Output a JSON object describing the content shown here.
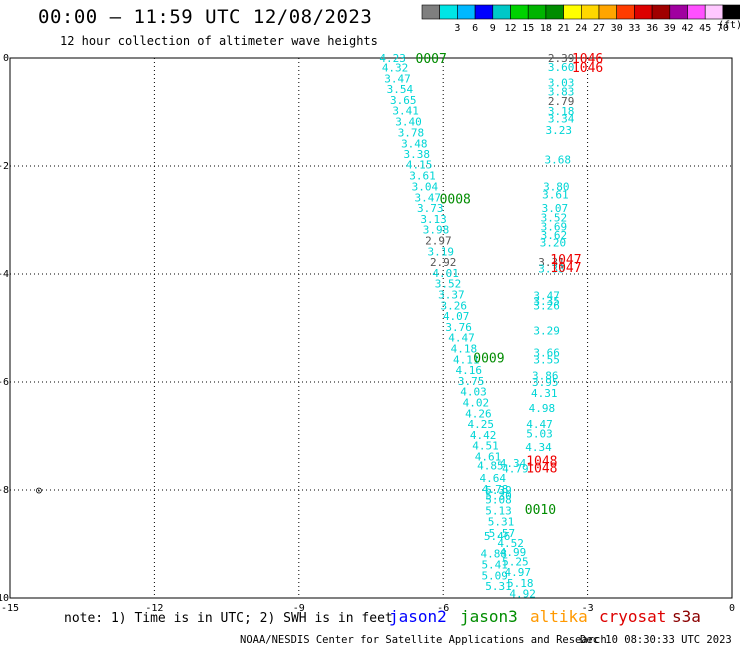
{
  "title": "00:00 – 11:59 UTC 12/08/2023",
  "subtitle": "12 hour collection of altimeter wave heights",
  "note": "note: 1) Time is in UTC; 2) SWH is in feet",
  "footer_left": "NOAA/NESDIS Center for Satellite Applications and Research",
  "footer_right": "Dec 10 08:30:33 UTC 2023",
  "color_scale": {
    "unit": "(ft)",
    "bins": [
      {
        "label": "",
        "color": "#7f7f7f"
      },
      {
        "label": "3",
        "color": "#00e5e5"
      },
      {
        "label": "6",
        "color": "#00b8ff"
      },
      {
        "label": "9",
        "color": "#0000ff"
      },
      {
        "label": "12",
        "color": "#00c8c8"
      },
      {
        "label": "15",
        "color": "#00d200"
      },
      {
        "label": "18",
        "color": "#00b400"
      },
      {
        "label": "21",
        "color": "#008c00"
      },
      {
        "label": "24",
        "color": "#ffff00"
      },
      {
        "label": "27",
        "color": "#ffd700"
      },
      {
        "label": "30",
        "color": "#ffa500"
      },
      {
        "label": "33",
        "color": "#ff3c00"
      },
      {
        "label": "36",
        "color": "#dc0000"
      },
      {
        "label": "39",
        "color": "#a00000"
      },
      {
        "label": "42",
        "color": "#a000a0"
      },
      {
        "label": "45",
        "color": "#ff50ff"
      },
      {
        "label": "70",
        "color": "#ffc8ff"
      },
      {
        "label": "",
        "color": "#000000"
      }
    ]
  },
  "legend": [
    {
      "name": "jason2",
      "color": "#0000ff"
    },
    {
      "name": "jason3",
      "color": "#008c00"
    },
    {
      "name": "altika",
      "color": "#ff9900"
    },
    {
      "name": "cryosat",
      "color": "#dd0000"
    },
    {
      "name": "s3a",
      "color": "#8b0000"
    }
  ],
  "chart_data": {
    "type": "scatter",
    "xlim": [
      -15,
      0
    ],
    "ylim": [
      -10,
      0
    ],
    "x_ticks": [
      "-15",
      "-12",
      "-9",
      "-6",
      "-3",
      "0"
    ],
    "y_ticks": [
      "0",
      "-2",
      "-4",
      "-6",
      "-8",
      "-10"
    ],
    "grid": true,
    "colors": {
      "cyan": "#00d5d5",
      "gray": "#555555",
      "green": "#008c00",
      "red": "#ee0000",
      "black": "#000000"
    },
    "markers": [
      {
        "text": "⊙",
        "x": -14.4,
        "y": -8.0,
        "c": "black"
      }
    ],
    "labels": [
      {
        "text": "0007",
        "x": -6.25,
        "y": 0.0,
        "c": "green"
      },
      {
        "text": "0008",
        "x": -5.75,
        "y": -2.6,
        "c": "green"
      },
      {
        "text": "0009",
        "x": -5.05,
        "y": -5.55,
        "c": "green"
      },
      {
        "text": "0010",
        "x": -3.98,
        "y": -8.35,
        "c": "green"
      },
      {
        "text": "1046",
        "x": -3.0,
        "y": 0.0,
        "c": "red"
      },
      {
        "text": "1046",
        "x": -3.0,
        "y": -0.17,
        "c": "red"
      },
      {
        "text": "1047",
        "x": -3.45,
        "y": -3.72,
        "c": "red"
      },
      {
        "text": "1047",
        "x": -3.45,
        "y": -3.87,
        "c": "red"
      },
      {
        "text": "1048",
        "x": -3.95,
        "y": -7.45,
        "c": "red"
      },
      {
        "text": "1048",
        "x": -3.95,
        "y": -7.58,
        "c": "red"
      }
    ],
    "points": [
      {
        "v": "4.23",
        "x": -7.05,
        "y": 0.0,
        "c": "cyan"
      },
      {
        "v": "4.32",
        "x": -7.0,
        "y": -0.18,
        "c": "cyan"
      },
      {
        "v": "3.47",
        "x": -6.95,
        "y": -0.38,
        "c": "cyan"
      },
      {
        "v": "3.54",
        "x": -6.9,
        "y": -0.57,
        "c": "cyan"
      },
      {
        "v": "3.65",
        "x": -6.83,
        "y": -0.78,
        "c": "cyan"
      },
      {
        "v": "3.41",
        "x": -6.78,
        "y": -0.97,
        "c": "cyan"
      },
      {
        "v": "3.40",
        "x": -6.72,
        "y": -1.18,
        "c": "cyan"
      },
      {
        "v": "3.78",
        "x": -6.67,
        "y": -1.38,
        "c": "cyan"
      },
      {
        "v": "3.48",
        "x": -6.6,
        "y": -1.58,
        "c": "cyan"
      },
      {
        "v": "3.38",
        "x": -6.55,
        "y": -1.78,
        "c": "cyan"
      },
      {
        "v": "4.15",
        "x": -6.5,
        "y": -1.97,
        "c": "cyan"
      },
      {
        "v": "3.61",
        "x": -6.43,
        "y": -2.18,
        "c": "cyan"
      },
      {
        "v": "3.04",
        "x": -6.38,
        "y": -2.38,
        "c": "cyan"
      },
      {
        "v": "3.47",
        "x": -6.32,
        "y": -2.58,
        "c": "cyan"
      },
      {
        "v": "3.73",
        "x": -6.27,
        "y": -2.78,
        "c": "cyan"
      },
      {
        "v": "3.13",
        "x": -6.2,
        "y": -2.98,
        "c": "cyan"
      },
      {
        "v": "3.98",
        "x": -6.15,
        "y": -3.18,
        "c": "cyan"
      },
      {
        "v": "2.97",
        "x": -6.1,
        "y": -3.38,
        "c": "gray"
      },
      {
        "v": "3.19",
        "x": -6.05,
        "y": -3.58,
        "c": "cyan"
      },
      {
        "v": "2.92",
        "x": -6.0,
        "y": -3.78,
        "c": "gray"
      },
      {
        "v": "4.01",
        "x": -5.95,
        "y": -3.98,
        "c": "cyan"
      },
      {
        "v": "3.52",
        "x": -5.9,
        "y": -4.18,
        "c": "cyan"
      },
      {
        "v": "3.37",
        "x": -5.83,
        "y": -4.38,
        "c": "cyan"
      },
      {
        "v": "3.26",
        "x": -5.78,
        "y": -4.58,
        "c": "cyan"
      },
      {
        "v": "4.07",
        "x": -5.73,
        "y": -4.78,
        "c": "cyan"
      },
      {
        "v": "3.76",
        "x": -5.68,
        "y": -4.98,
        "c": "cyan"
      },
      {
        "v": "4.47",
        "x": -5.62,
        "y": -5.18,
        "c": "cyan"
      },
      {
        "v": "4.18",
        "x": -5.57,
        "y": -5.38,
        "c": "cyan"
      },
      {
        "v": "4.11",
        "x": -5.52,
        "y": -5.58,
        "c": "cyan"
      },
      {
        "v": "4.16",
        "x": -5.47,
        "y": -5.78,
        "c": "cyan"
      },
      {
        "v": "3.75",
        "x": -5.42,
        "y": -5.98,
        "c": "cyan"
      },
      {
        "v": "4.03",
        "x": -5.37,
        "y": -6.18,
        "c": "cyan"
      },
      {
        "v": "4.02",
        "x": -5.32,
        "y": -6.38,
        "c": "cyan"
      },
      {
        "v": "4.26",
        "x": -5.27,
        "y": -6.58,
        "c": "cyan"
      },
      {
        "v": "4.25",
        "x": -5.22,
        "y": -6.78,
        "c": "cyan"
      },
      {
        "v": "4.42",
        "x": -5.17,
        "y": -6.98,
        "c": "cyan"
      },
      {
        "v": "4.51",
        "x": -5.12,
        "y": -7.18,
        "c": "cyan"
      },
      {
        "v": "4.61",
        "x": -5.07,
        "y": -7.38,
        "c": "cyan"
      },
      {
        "v": "4.85",
        "x": -5.02,
        "y": -7.55,
        "c": "cyan"
      },
      {
        "v": "4.64",
        "x": -4.97,
        "y": -7.78,
        "c": "cyan"
      },
      {
        "v": "4.78",
        "x": -4.92,
        "y": -7.98,
        "c": "cyan"
      },
      {
        "v": "5.39",
        "x": -4.85,
        "y": -8.0,
        "c": "cyan"
      },
      {
        "v": "5.30",
        "x": -4.85,
        "y": -8.1,
        "c": "cyan"
      },
      {
        "v": "5.08",
        "x": -4.85,
        "y": -8.18,
        "c": "cyan"
      },
      {
        "v": "5.13",
        "x": -4.85,
        "y": -8.38,
        "c": "cyan"
      },
      {
        "v": "5.31",
        "x": -4.8,
        "y": -8.58,
        "c": "cyan"
      },
      {
        "v": "5.57",
        "x": -4.78,
        "y": -8.8,
        "c": "cyan"
      },
      {
        "v": "5.46",
        "x": -4.88,
        "y": -8.85,
        "c": "cyan"
      },
      {
        "v": "4.52",
        "x": -4.6,
        "y": -8.98,
        "c": "cyan"
      },
      {
        "v": "4.88",
        "x": -4.95,
        "y": -9.18,
        "c": "cyan"
      },
      {
        "v": "4.99",
        "x": -4.55,
        "y": -9.15,
        "c": "cyan"
      },
      {
        "v": "5.25",
        "x": -4.5,
        "y": -9.32,
        "c": "cyan"
      },
      {
        "v": "5.41",
        "x": -4.93,
        "y": -9.38,
        "c": "cyan"
      },
      {
        "v": "4.97",
        "x": -4.45,
        "y": -9.52,
        "c": "cyan"
      },
      {
        "v": "5.09",
        "x": -4.93,
        "y": -9.58,
        "c": "cyan"
      },
      {
        "v": "5.18",
        "x": -4.4,
        "y": -9.72,
        "c": "cyan"
      },
      {
        "v": "5.31",
        "x": -4.85,
        "y": -9.78,
        "c": "cyan"
      },
      {
        "v": "4.92",
        "x": -4.35,
        "y": -9.92,
        "c": "cyan"
      },
      {
        "v": "2.39",
        "x": -3.55,
        "y": 0.0,
        "c": "gray"
      },
      {
        "v": "3.60",
        "x": -3.55,
        "y": -0.17,
        "c": "cyan"
      },
      {
        "v": "3.03",
        "x": -3.55,
        "y": -0.45,
        "c": "cyan"
      },
      {
        "v": "3.83",
        "x": -3.55,
        "y": -0.62,
        "c": "cyan"
      },
      {
        "v": "2.79",
        "x": -3.55,
        "y": -0.8,
        "c": "gray"
      },
      {
        "v": "3.18",
        "x": -3.55,
        "y": -0.98,
        "c": "cyan"
      },
      {
        "v": "3.34",
        "x": -3.55,
        "y": -1.12,
        "c": "cyan"
      },
      {
        "v": "3.23",
        "x": -3.6,
        "y": -1.33,
        "c": "cyan"
      },
      {
        "v": "3.68",
        "x": -3.62,
        "y": -1.88,
        "c": "cyan"
      },
      {
        "v": "3.80",
        "x": -3.65,
        "y": -2.38,
        "c": "cyan"
      },
      {
        "v": "3.61",
        "x": -3.67,
        "y": -2.53,
        "c": "cyan"
      },
      {
        "v": "3.07",
        "x": -3.68,
        "y": -2.78,
        "c": "cyan"
      },
      {
        "v": "3.52",
        "x": -3.7,
        "y": -2.95,
        "c": "cyan"
      },
      {
        "v": "3.69",
        "x": -3.7,
        "y": -3.12,
        "c": "cyan"
      },
      {
        "v": "3.62",
        "x": -3.7,
        "y": -3.28,
        "c": "cyan"
      },
      {
        "v": "3.20",
        "x": -3.72,
        "y": -3.42,
        "c": "cyan"
      },
      {
        "v": "3.31",
        "x": -3.75,
        "y": -3.78,
        "c": "gray"
      },
      {
        "v": "3.33",
        "x": -3.75,
        "y": -3.9,
        "c": "cyan"
      },
      {
        "v": "3.47",
        "x": -3.85,
        "y": -4.4,
        "c": "cyan"
      },
      {
        "v": "3.35",
        "x": -3.85,
        "y": -4.5,
        "c": "cyan"
      },
      {
        "v": "3.26",
        "x": -3.85,
        "y": -4.58,
        "c": "cyan"
      },
      {
        "v": "3.29",
        "x": -3.85,
        "y": -5.05,
        "c": "cyan"
      },
      {
        "v": "3.66",
        "x": -3.85,
        "y": -5.45,
        "c": "cyan"
      },
      {
        "v": "3.55",
        "x": -3.85,
        "y": -5.58,
        "c": "cyan"
      },
      {
        "v": "3.86",
        "x": -3.88,
        "y": -5.88,
        "c": "cyan"
      },
      {
        "v": "3.95",
        "x": -3.88,
        "y": -6.0,
        "c": "cyan"
      },
      {
        "v": "4.31",
        "x": -3.9,
        "y": -6.2,
        "c": "cyan"
      },
      {
        "v": "4.98",
        "x": -3.95,
        "y": -6.48,
        "c": "cyan"
      },
      {
        "v": "4.47",
        "x": -4.0,
        "y": -6.78,
        "c": "cyan"
      },
      {
        "v": "5.03",
        "x": -4.0,
        "y": -6.95,
        "c": "cyan"
      },
      {
        "v": "4.34",
        "x": -4.02,
        "y": -7.2,
        "c": "cyan"
      },
      {
        "v": "4.34",
        "x": -4.55,
        "y": -7.5,
        "c": "cyan"
      },
      {
        "v": "4.79",
        "x": -4.5,
        "y": -7.6,
        "c": "cyan"
      }
    ]
  }
}
